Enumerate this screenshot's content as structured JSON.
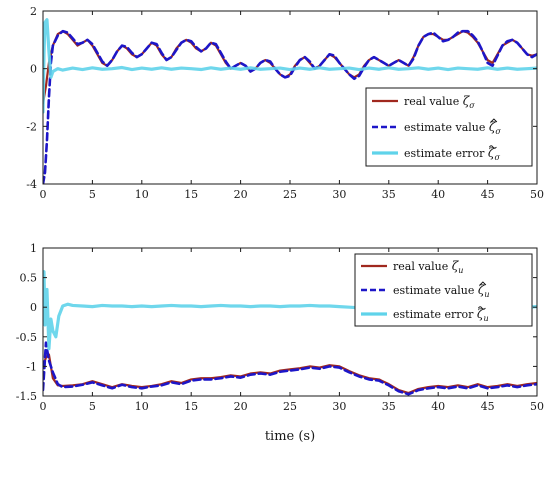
{
  "colors": {
    "real": "#a0281e",
    "estimate": "#1d16c8",
    "error": "#5fd3ea"
  },
  "chart_data": [
    {
      "type": "line",
      "xlabel": "",
      "xlim": [
        0,
        50
      ],
      "ylim": [
        -4,
        2
      ],
      "xticks": [
        "0",
        "5",
        "10",
        "15",
        "20",
        "25",
        "30",
        "35",
        "40",
        "45",
        "50"
      ],
      "yticks": [
        "-4",
        "-2",
        "0",
        "2"
      ],
      "legend_position": "right",
      "series": [
        {
          "name": "real value ζσ",
          "text": "real value",
          "sym": "ζ",
          "sub": "σ",
          "mark": "",
          "x": [
            0,
            0.3,
            0.6,
            1,
            1.5,
            2,
            2.5,
            3,
            3.5,
            4,
            4.5,
            5,
            5.5,
            6,
            6.5,
            7,
            7.5,
            8,
            8.5,
            9,
            9.5,
            10,
            10.5,
            11,
            11.5,
            12,
            12.5,
            13,
            13.5,
            14,
            14.5,
            15,
            15.5,
            16,
            16.5,
            17,
            17.5,
            18,
            18.5,
            19,
            19.5,
            20,
            20.5,
            21,
            21.5,
            22,
            22.5,
            23,
            23.5,
            24,
            24.5,
            25,
            25.5,
            26,
            26.5,
            27,
            27.5,
            28,
            28.5,
            29,
            29.5,
            30,
            30.5,
            31,
            31.5,
            32,
            32.5,
            33,
            33.5,
            34,
            34.5,
            35,
            35.5,
            36,
            36.5,
            37,
            37.5,
            38,
            38.5,
            39,
            39.5,
            40,
            40.5,
            41,
            41.5,
            42,
            42.5,
            43,
            43.5,
            44,
            44.5,
            45,
            45.5,
            46,
            46.5,
            47,
            47.5,
            48,
            48.5,
            49,
            49.5,
            50
          ],
          "y": [
            -1.2,
            -0.6,
            0.2,
            0.8,
            1.2,
            1.3,
            1.2,
            1.0,
            0.8,
            0.9,
            1.0,
            0.8,
            0.5,
            0.2,
            0.1,
            0.3,
            0.6,
            0.8,
            0.7,
            0.5,
            0.4,
            0.5,
            0.7,
            0.9,
            0.8,
            0.5,
            0.3,
            0.4,
            0.7,
            0.9,
            1.0,
            0.9,
            0.7,
            0.6,
            0.7,
            0.9,
            0.8,
            0.5,
            0.2,
            0.0,
            0.1,
            0.2,
            0.1,
            -0.1,
            0.0,
            0.2,
            0.3,
            0.2,
            0.0,
            -0.2,
            -0.3,
            -0.2,
            0.1,
            0.3,
            0.4,
            0.2,
            0.0,
            0.1,
            0.3,
            0.5,
            0.4,
            0.2,
            0.0,
            -0.2,
            -0.3,
            -0.2,
            0.1,
            0.3,
            0.4,
            0.3,
            0.2,
            0.1,
            0.2,
            0.3,
            0.2,
            0.1,
            0.4,
            0.8,
            1.1,
            1.2,
            1.2,
            1.1,
            1.0,
            1.0,
            1.1,
            1.2,
            1.3,
            1.25,
            1.1,
            0.9,
            0.6,
            0.3,
            0.2,
            0.5,
            0.8,
            0.9,
            1.0,
            0.9,
            0.7,
            0.5,
            0.45,
            0.5
          ]
        },
        {
          "name": "estimate value ζ̂σ",
          "text": "estimate value",
          "sym": "ζ",
          "sub": "σ",
          "mark": "hat",
          "x": [
            0,
            0.2,
            0.4,
            0.6,
            0.8,
            1,
            1.5,
            2,
            2.5,
            3,
            3.5,
            4,
            4.5,
            5,
            5.5,
            6,
            6.5,
            7,
            7.5,
            8,
            8.5,
            9,
            9.5,
            10,
            10.5,
            11,
            11.5,
            12,
            12.5,
            13,
            13.5,
            14,
            14.5,
            15,
            15.5,
            16,
            16.5,
            17,
            17.5,
            18,
            18.5,
            19,
            19.5,
            20,
            20.5,
            21,
            21.5,
            22,
            22.5,
            23,
            23.5,
            24,
            24.5,
            25,
            25.5,
            26,
            26.5,
            27,
            27.5,
            28,
            28.5,
            29,
            29.5,
            30,
            30.5,
            31,
            31.5,
            32,
            32.5,
            33,
            33.5,
            34,
            34.5,
            35,
            35.5,
            36,
            36.5,
            37,
            37.5,
            38,
            38.5,
            39,
            39.5,
            40,
            40.5,
            41,
            41.5,
            42,
            42.5,
            43,
            43.5,
            44,
            44.5,
            45,
            45.5,
            46,
            46.5,
            47,
            47.5,
            48,
            48.5,
            49,
            49.5,
            50
          ],
          "y": [
            -4,
            -3.6,
            -2.5,
            -1,
            0.2,
            0.8,
            1.15,
            1.3,
            1.25,
            1.05,
            0.85,
            0.9,
            1.0,
            0.85,
            0.55,
            0.25,
            0.1,
            0.3,
            0.6,
            0.8,
            0.75,
            0.55,
            0.4,
            0.5,
            0.7,
            0.9,
            0.85,
            0.55,
            0.3,
            0.4,
            0.65,
            0.9,
            1.0,
            0.95,
            0.75,
            0.6,
            0.7,
            0.9,
            0.85,
            0.55,
            0.25,
            0.0,
            0.1,
            0.2,
            0.1,
            -0.1,
            0.0,
            0.2,
            0.3,
            0.25,
            0.0,
            -0.2,
            -0.3,
            -0.25,
            0.05,
            0.3,
            0.4,
            0.25,
            0.0,
            0.1,
            0.3,
            0.5,
            0.45,
            0.2,
            0.0,
            -0.2,
            -0.35,
            -0.25,
            0.05,
            0.3,
            0.4,
            0.3,
            0.2,
            0.1,
            0.2,
            0.3,
            0.2,
            0.1,
            0.35,
            0.8,
            1.1,
            1.2,
            1.25,
            1.1,
            0.95,
            1.0,
            1.1,
            1.25,
            1.3,
            1.3,
            1.15,
            0.95,
            0.6,
            0.2,
            0.1,
            0.45,
            0.8,
            0.95,
            1.0,
            0.9,
            0.7,
            0.5,
            0.4,
            0.5
          ]
        },
        {
          "name": "estimate error ζ̃σ",
          "text": "estimate error",
          "sym": "ζ",
          "sub": "σ",
          "mark": "tilde",
          "x": [
            0,
            0.1,
            0.2,
            0.4,
            0.6,
            0.8,
            1,
            1.5,
            2,
            3,
            4,
            5,
            6,
            7,
            8,
            9,
            10,
            11,
            12,
            13,
            14,
            15,
            16,
            17,
            18,
            19,
            20,
            21,
            22,
            23,
            24,
            25,
            26,
            27,
            28,
            29,
            30,
            31,
            32,
            33,
            34,
            35,
            36,
            37,
            38,
            39,
            40,
            41,
            42,
            43,
            44,
            45,
            46,
            47,
            48,
            49,
            50
          ],
          "y": [
            -1.5,
            0.5,
            1.6,
            1.7,
            0.6,
            -0.3,
            -0.1,
            0.0,
            -0.05,
            0.02,
            -0.03,
            0.03,
            -0.02,
            0.0,
            0.04,
            -0.03,
            0.02,
            -0.02,
            0.03,
            -0.02,
            0.02,
            0.0,
            -0.03,
            0.03,
            -0.02,
            0.02,
            -0.02,
            0.03,
            -0.02,
            0.0,
            0.02,
            -0.03,
            0.02,
            -0.02,
            0.03,
            -0.02,
            0.0,
            0.02,
            -0.03,
            0.02,
            -0.02,
            0.03,
            -0.02,
            0.0,
            0.03,
            -0.02,
            0.02,
            -0.03,
            0.02,
            0.0,
            -0.02,
            0.03,
            -0.02,
            0.02,
            -0.02,
            0.0,
            0.02
          ]
        }
      ]
    },
    {
      "type": "line",
      "xlabel": "time (s)",
      "xlim": [
        0,
        50
      ],
      "ylim": [
        -1.5,
        1
      ],
      "xticks": [
        "0",
        "5",
        "10",
        "15",
        "20",
        "25",
        "30",
        "35",
        "40",
        "45",
        "50"
      ],
      "yticks": [
        "-1.5",
        "-1",
        "-0.5",
        "0",
        "0.5",
        "1"
      ],
      "legend_position": "top-right",
      "series": [
        {
          "name": "real value ζu",
          "text": "real value",
          "sym": "ζ",
          "sub": "u",
          "mark": "",
          "x": [
            0,
            0.3,
            0.6,
            1,
            1.5,
            2,
            3,
            4,
            5,
            6,
            7,
            8,
            9,
            10,
            11,
            12,
            13,
            14,
            15,
            16,
            17,
            18,
            19,
            20,
            21,
            22,
            23,
            24,
            25,
            26,
            27,
            28,
            29,
            30,
            31,
            32,
            33,
            34,
            35,
            36,
            37,
            38,
            39,
            40,
            41,
            42,
            43,
            44,
            45,
            46,
            47,
            48,
            49,
            50
          ],
          "y": [
            -1.0,
            -0.85,
            -0.8,
            -1.2,
            -1.32,
            -1.33,
            -1.32,
            -1.3,
            -1.25,
            -1.3,
            -1.35,
            -1.3,
            -1.33,
            -1.35,
            -1.33,
            -1.3,
            -1.25,
            -1.28,
            -1.22,
            -1.2,
            -1.2,
            -1.18,
            -1.15,
            -1.17,
            -1.12,
            -1.1,
            -1.12,
            -1.07,
            -1.05,
            -1.03,
            -1.0,
            -1.02,
            -0.98,
            -1.0,
            -1.08,
            -1.15,
            -1.2,
            -1.22,
            -1.3,
            -1.4,
            -1.45,
            -1.38,
            -1.35,
            -1.33,
            -1.35,
            -1.32,
            -1.35,
            -1.3,
            -1.35,
            -1.33,
            -1.3,
            -1.33,
            -1.3,
            -1.28
          ]
        },
        {
          "name": "estimate value ζ̂u",
          "text": "estimate value",
          "sym": "ζ",
          "sub": "u",
          "mark": "hat",
          "x": [
            0,
            0.3,
            0.6,
            1,
            1.5,
            2,
            3,
            4,
            5,
            6,
            7,
            8,
            9,
            10,
            11,
            12,
            13,
            14,
            15,
            16,
            17,
            18,
            19,
            20,
            21,
            22,
            23,
            24,
            25,
            26,
            27,
            28,
            29,
            30,
            31,
            32,
            33,
            34,
            35,
            36,
            37,
            38,
            39,
            40,
            41,
            42,
            43,
            44,
            45,
            46,
            47,
            48,
            49,
            50
          ],
          "y": [
            -1.4,
            -0.6,
            -0.9,
            -1.1,
            -1.3,
            -1.35,
            -1.34,
            -1.31,
            -1.27,
            -1.32,
            -1.37,
            -1.31,
            -1.35,
            -1.37,
            -1.34,
            -1.32,
            -1.27,
            -1.3,
            -1.24,
            -1.22,
            -1.22,
            -1.2,
            -1.17,
            -1.19,
            -1.14,
            -1.12,
            -1.14,
            -1.09,
            -1.07,
            -1.05,
            -1.02,
            -1.04,
            -1.0,
            -1.02,
            -1.1,
            -1.17,
            -1.22,
            -1.24,
            -1.32,
            -1.42,
            -1.47,
            -1.4,
            -1.37,
            -1.35,
            -1.37,
            -1.34,
            -1.37,
            -1.32,
            -1.37,
            -1.35,
            -1.32,
            -1.35,
            -1.32,
            -1.3
          ]
        },
        {
          "name": "estimate error ζ̃u",
          "text": "estimate error",
          "sym": "ζ",
          "sub": "u",
          "mark": "tilde",
          "x": [
            0,
            0.1,
            0.2,
            0.4,
            0.6,
            0.8,
            1,
            1.3,
            1.6,
            2,
            2.5,
            3,
            4,
            5,
            6,
            7,
            8,
            9,
            10,
            11,
            12,
            13,
            14,
            15,
            16,
            17,
            18,
            19,
            20,
            21,
            22,
            23,
            24,
            25,
            26,
            27,
            28,
            29,
            30,
            31,
            32,
            33,
            34,
            35,
            36,
            37,
            38,
            39,
            40,
            41,
            42,
            43,
            44,
            45,
            46,
            47,
            48,
            49,
            50
          ],
          "y": [
            0.5,
            0.6,
            -0.3,
            0.3,
            -0.7,
            -0.2,
            -0.4,
            -0.5,
            -0.15,
            0.02,
            0.05,
            0.03,
            0.02,
            0.01,
            0.03,
            0.02,
            0.02,
            0.01,
            0.02,
            0.01,
            0.02,
            0.03,
            0.02,
            0.02,
            0.01,
            0.02,
            0.03,
            0.02,
            0.02,
            0.01,
            0.02,
            0.02,
            0.01,
            0.02,
            0.02,
            0.03,
            0.02,
            0.02,
            0.01,
            0.0,
            -0.01,
            0.0,
            0.02,
            0.01,
            0.0,
            -0.02,
            0.0,
            0.02,
            0.01,
            0.0,
            0.02,
            0.0,
            -0.03,
            0.0,
            0.02,
            0.01,
            0.02,
            0.0,
            0.01
          ]
        }
      ]
    }
  ]
}
